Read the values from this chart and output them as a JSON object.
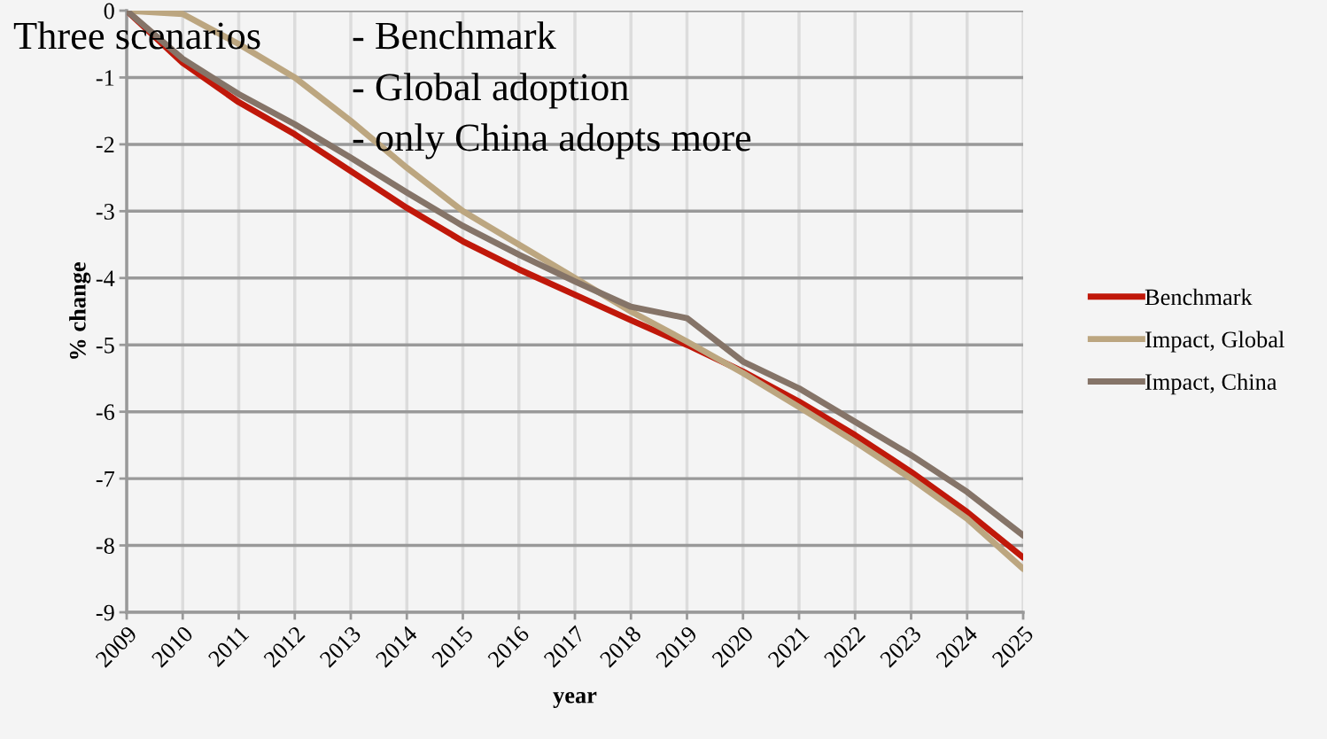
{
  "chart_data": {
    "type": "line",
    "xlabel": "year",
    "ylabel": "% change",
    "categories": [
      "2009",
      "2010",
      "2011",
      "2012",
      "2013",
      "2014",
      "2015",
      "2016",
      "2017",
      "2018",
      "2019",
      "2020",
      "2021",
      "2022",
      "2023",
      "2024",
      "2025"
    ],
    "series": [
      {
        "name": "Benchmark",
        "color": "#c0180a",
        "values": [
          0,
          -0.78,
          -1.37,
          -1.85,
          -2.4,
          -2.95,
          -3.45,
          -3.87,
          -4.25,
          -4.63,
          -5.0,
          -5.4,
          -5.85,
          -6.35,
          -6.9,
          -7.5,
          -8.18
        ]
      },
      {
        "name": "Impact, Global",
        "color": "#bca680",
        "values": [
          0,
          -0.05,
          -0.5,
          -1.0,
          -1.65,
          -2.35,
          -3.0,
          -3.5,
          -4.0,
          -4.5,
          -4.95,
          -5.42,
          -5.93,
          -6.45,
          -7.0,
          -7.6,
          -8.35
        ]
      },
      {
        "name": "Impact, China",
        "color": "#857468",
        "values": [
          0,
          -0.72,
          -1.25,
          -1.7,
          -2.2,
          -2.72,
          -3.22,
          -3.65,
          -4.05,
          -4.43,
          -4.6,
          -5.25,
          -5.65,
          -6.15,
          -6.65,
          -7.2,
          -7.85
        ]
      }
    ],
    "ylim": [
      -9,
      0
    ],
    "yticks": [
      0,
      -1,
      -2,
      -3,
      -4,
      -5,
      -6,
      -7,
      -8,
      -9
    ],
    "grid": true,
    "legend": "right",
    "line_style": "solid",
    "marker": "none",
    "annotations": [
      "Three scenarios",
      "- Benchmark",
      "- Global adoption",
      "- only China adopts more"
    ]
  }
}
